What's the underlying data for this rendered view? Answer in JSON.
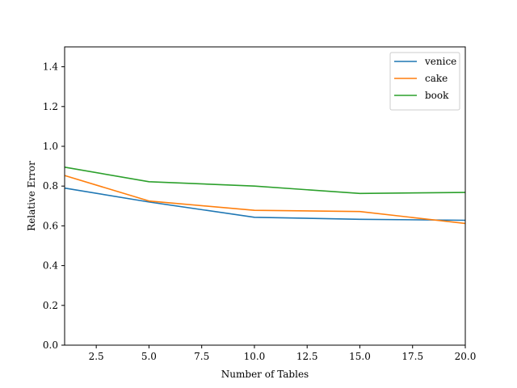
{
  "chart_data": {
    "type": "line",
    "title": "",
    "xlabel": "Number of Tables",
    "ylabel": "Relative Error",
    "xlim": [
      1,
      20
    ],
    "ylim": [
      0.0,
      1.5
    ],
    "xticks": [
      2.5,
      5.0,
      7.5,
      10.0,
      12.5,
      15.0,
      17.5,
      20.0
    ],
    "xtick_labels": [
      "2.5",
      "5.0",
      "7.5",
      "10.0",
      "12.5",
      "15.0",
      "17.5",
      "20.0"
    ],
    "yticks": [
      0.0,
      0.2,
      0.4,
      0.6,
      0.8,
      1.0,
      1.2,
      1.4
    ],
    "ytick_labels": [
      "0.0",
      "0.2",
      "0.4",
      "0.6",
      "0.8",
      "1.0",
      "1.2",
      "1.4"
    ],
    "grid": false,
    "legend_position": "top-right",
    "x": [
      1,
      5,
      10,
      15,
      20
    ],
    "series": [
      {
        "name": "venice",
        "color": "#1f77b4",
        "values": [
          0.79,
          0.72,
          0.643,
          0.633,
          0.628
        ]
      },
      {
        "name": "cake",
        "color": "#ff7f0e",
        "values": [
          0.853,
          0.725,
          0.678,
          0.672,
          0.612
        ]
      },
      {
        "name": "book",
        "color": "#2ca02c",
        "values": [
          0.895,
          0.822,
          0.8,
          0.763,
          0.768
        ]
      }
    ]
  }
}
